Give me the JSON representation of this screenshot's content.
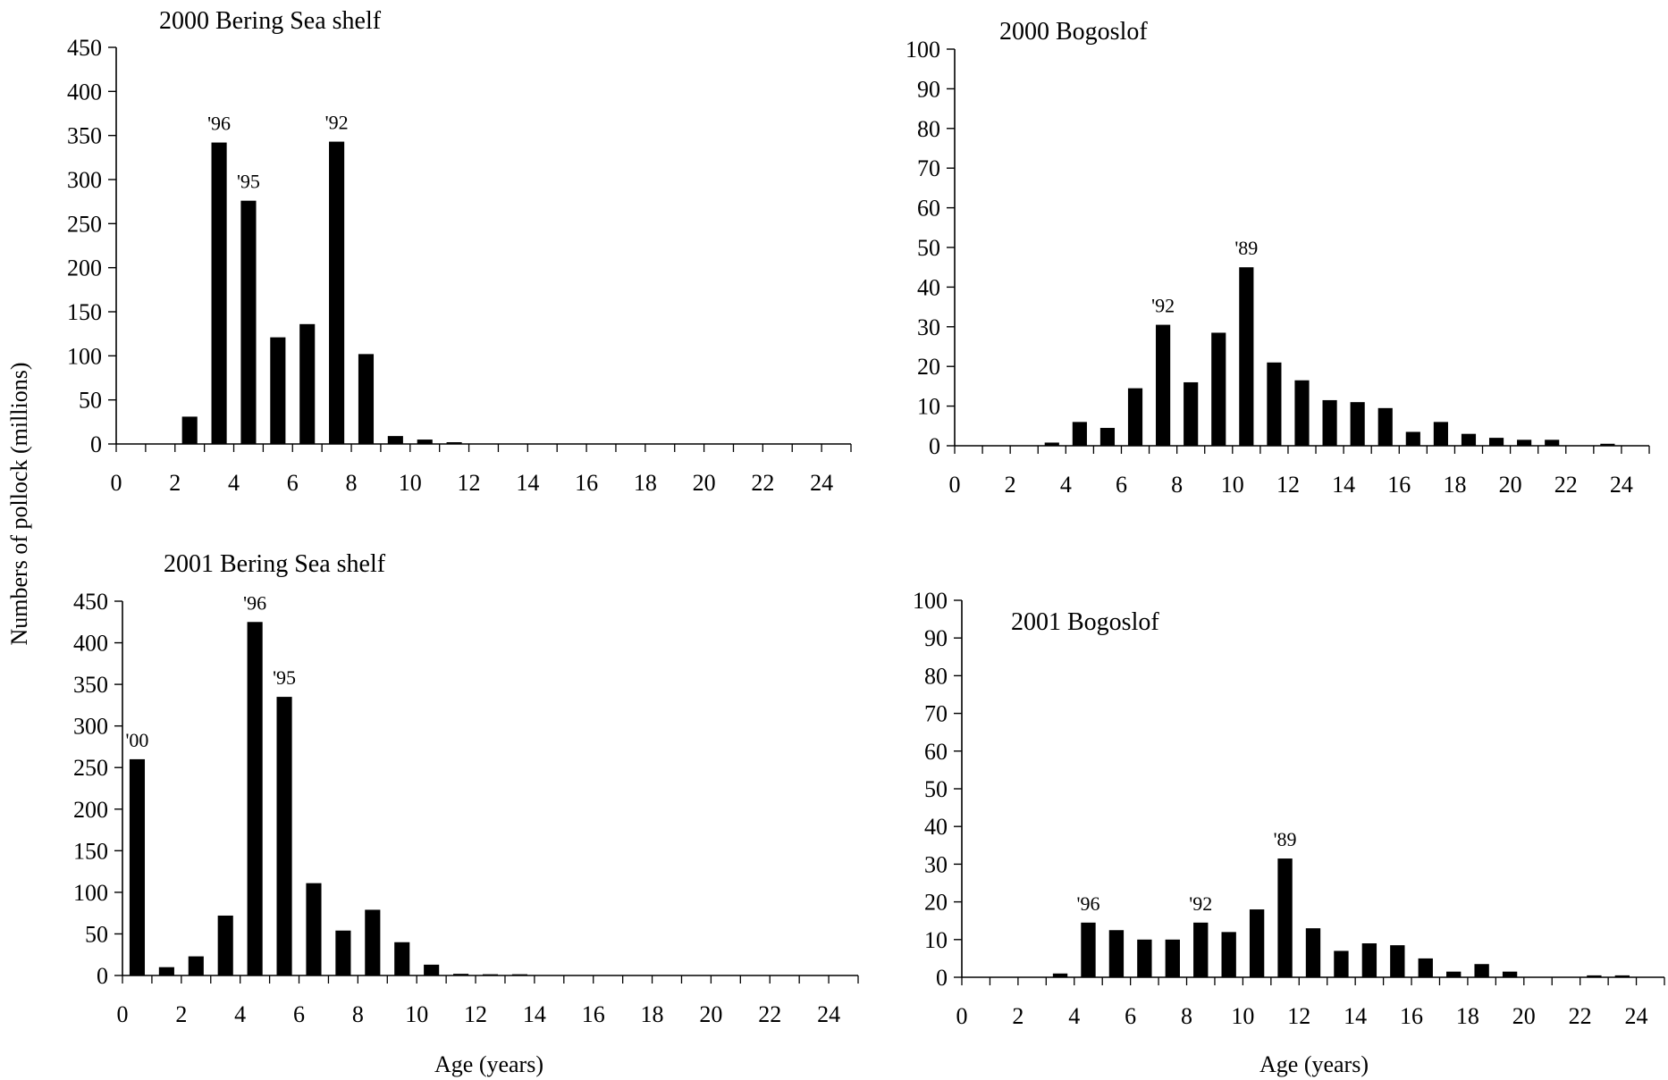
{
  "figure": {
    "ylabel": "Numbers of pollock (millions)",
    "xlabel_bottom_left": "Age (years)",
    "xlabel_bottom_right": "Age (years)"
  },
  "chart_data": [
    {
      "type": "bar",
      "id": "shelf2000",
      "title": "2000  Bering Sea shelf",
      "xlim": [
        0,
        25
      ],
      "ylim": [
        0,
        450
      ],
      "xticks": [
        0,
        2,
        4,
        6,
        8,
        10,
        12,
        14,
        16,
        18,
        20,
        22,
        24
      ],
      "yticks": [
        0,
        50,
        100,
        150,
        200,
        250,
        300,
        350,
        400,
        450
      ],
      "x": [
        1,
        2,
        3,
        4,
        5,
        6,
        7,
        8,
        9,
        10,
        11,
        12,
        13,
        14,
        15,
        16,
        17,
        18,
        19,
        20,
        21,
        22,
        23,
        24
      ],
      "values": [
        0,
        0,
        31,
        342,
        276,
        121,
        136,
        343,
        102,
        9,
        5,
        2,
        0.5,
        0.3,
        0,
        0,
        0,
        0,
        0,
        0,
        0,
        0,
        0,
        0
      ],
      "annotations": [
        {
          "x": 4,
          "label": "'96"
        },
        {
          "x": 5,
          "label": "'95"
        },
        {
          "x": 8,
          "label": "'92"
        }
      ]
    },
    {
      "type": "bar",
      "id": "bogoslof2000",
      "title": "2000  Bogoslof",
      "xlim": [
        0,
        25
      ],
      "ylim": [
        0,
        100
      ],
      "xticks": [
        0,
        2,
        4,
        6,
        8,
        10,
        12,
        14,
        16,
        18,
        20,
        22,
        24
      ],
      "yticks": [
        0,
        10,
        20,
        30,
        40,
        50,
        60,
        70,
        80,
        90,
        100
      ],
      "x": [
        1,
        2,
        3,
        4,
        5,
        6,
        7,
        8,
        9,
        10,
        11,
        12,
        13,
        14,
        15,
        16,
        17,
        18,
        19,
        20,
        21,
        22,
        23,
        24
      ],
      "values": [
        0,
        0,
        0,
        0.8,
        6,
        4.5,
        14.5,
        30.5,
        16,
        28.5,
        45,
        21,
        16.5,
        11.5,
        11,
        9.5,
        3.5,
        6,
        3,
        2,
        1.5,
        1.5,
        0,
        0.5
      ],
      "annotations": [
        {
          "x": 8,
          "label": "'92"
        },
        {
          "x": 11,
          "label": "'89"
        }
      ]
    },
    {
      "type": "bar",
      "id": "shelf2001",
      "title": "2001  Bering Sea shelf",
      "xlim": [
        0,
        25
      ],
      "ylim": [
        0,
        450
      ],
      "xticks": [
        0,
        2,
        4,
        6,
        8,
        10,
        12,
        14,
        16,
        18,
        20,
        22,
        24
      ],
      "yticks": [
        0,
        50,
        100,
        150,
        200,
        250,
        300,
        350,
        400,
        450
      ],
      "x": [
        1,
        2,
        3,
        4,
        5,
        6,
        7,
        8,
        9,
        10,
        11,
        12,
        13,
        14,
        15,
        16,
        17,
        18,
        19,
        20,
        21,
        22,
        23,
        24
      ],
      "values": [
        260,
        10,
        23,
        72,
        425,
        335,
        111,
        54,
        79,
        40,
        13,
        2,
        1.5,
        1.5,
        0,
        0,
        0,
        0,
        0,
        0,
        0,
        0,
        0,
        0
      ],
      "annotations": [
        {
          "x": 1,
          "label": "'00"
        },
        {
          "x": 5,
          "label": "'96"
        },
        {
          "x": 6,
          "label": "'95"
        }
      ]
    },
    {
      "type": "bar",
      "id": "bogoslof2001",
      "title": "2001  Bogoslof",
      "xlim": [
        0,
        25
      ],
      "ylim": [
        0,
        100
      ],
      "xticks": [
        0,
        2,
        4,
        6,
        8,
        10,
        12,
        14,
        16,
        18,
        20,
        22,
        24
      ],
      "yticks": [
        0,
        10,
        20,
        30,
        40,
        50,
        60,
        70,
        80,
        90,
        100
      ],
      "x": [
        1,
        2,
        3,
        4,
        5,
        6,
        7,
        8,
        9,
        10,
        11,
        12,
        13,
        14,
        15,
        16,
        17,
        18,
        19,
        20,
        21,
        22,
        23,
        24
      ],
      "values": [
        0,
        0,
        0,
        1,
        14.5,
        12.5,
        10,
        10,
        14.5,
        12,
        18,
        31.5,
        13,
        7,
        9,
        8.5,
        5,
        1.5,
        3.5,
        1.5,
        0,
        0,
        0.5,
        0.5
      ],
      "annotations": [
        {
          "x": 5,
          "label": "'96"
        },
        {
          "x": 9,
          "label": "'92"
        },
        {
          "x": 12,
          "label": "'89"
        }
      ]
    }
  ]
}
